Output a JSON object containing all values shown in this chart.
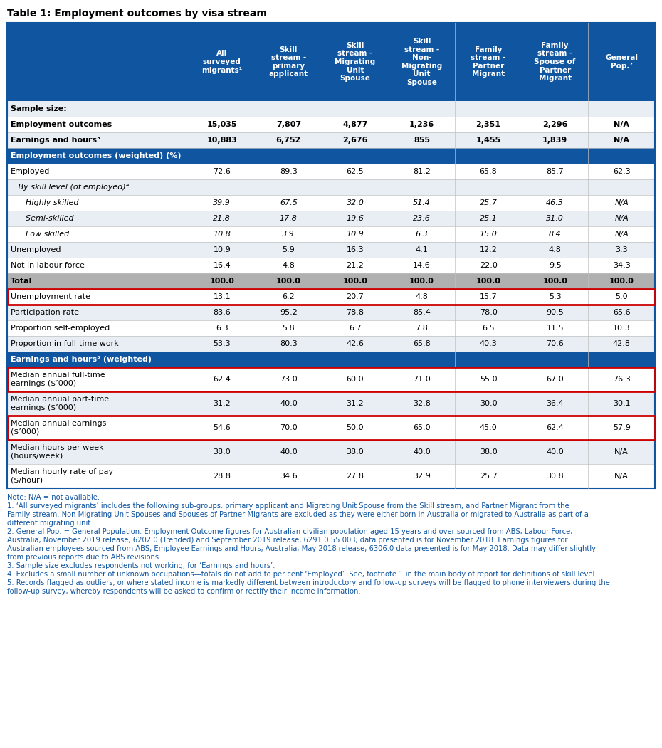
{
  "title": "Table 1: Employment outcomes by visa stream",
  "header_bg": "#1055A0",
  "header_text": "#FFFFFF",
  "section_bg": "#1055A0",
  "section_text": "#FFFFFF",
  "total_bg": "#B0B0B0",
  "alt_row_bg": "#E8EEF4",
  "white_bg": "#FFFFFF",
  "red_border_color": "#CC0000",
  "border_color": "#1055A0",
  "grid_color": "#C0C0C0",
  "notes_color": "#1055A0",
  "col_headers": [
    "All\nsurveyed\nmigrants¹",
    "Skill\nstream -\nprimary\napplicant",
    "Skill\nstream -\nMigrating\nUnit\nSpouse",
    "Skill\nstream -\nNon-\nMigrating\nUnit\nSpouse",
    "Family\nstream -\nPartner\nMigrant",
    "Family\nstream -\nSpouse of\nPartner\nMigrant",
    "General\nPop.²"
  ],
  "rows": [
    {
      "label": "Sample size:",
      "type": "sample_header",
      "indent": 0,
      "values": [
        "",
        "",
        "",
        "",
        "",
        "",
        ""
      ],
      "bold": true,
      "italic": false
    },
    {
      "label": "Employment outcomes",
      "type": "data",
      "indent": 0,
      "values": [
        "15,035",
        "7,807",
        "4,877",
        "1,236",
        "2,351",
        "2,296",
        "N/A"
      ],
      "bold": true,
      "italic": false
    },
    {
      "label": "Earnings and hours³",
      "type": "data",
      "indent": 0,
      "values": [
        "10,883",
        "6,752",
        "2,676",
        "855",
        "1,455",
        "1,839",
        "N/A"
      ],
      "bold": true,
      "italic": false
    },
    {
      "label": "Employment outcomes (weighted) (%)",
      "type": "section_header",
      "indent": 0,
      "values": [
        "",
        "",
        "",
        "",
        "",
        "",
        ""
      ],
      "bold": true,
      "italic": false
    },
    {
      "label": "Employed",
      "type": "data",
      "indent": 0,
      "values": [
        "72.6",
        "89.3",
        "62.5",
        "81.2",
        "65.8",
        "85.7",
        "62.3"
      ],
      "bold": false,
      "italic": false
    },
    {
      "label": "   By skill level (of employed)⁴:",
      "type": "data",
      "indent": 0,
      "values": [
        "",
        "",
        "",
        "",
        "",
        "",
        ""
      ],
      "bold": false,
      "italic": true
    },
    {
      "label": "      Highly skilled",
      "type": "data",
      "indent": 0,
      "values": [
        "39.9",
        "67.5",
        "32.0",
        "51.4",
        "25.7",
        "46.3",
        "N/A"
      ],
      "bold": false,
      "italic": true
    },
    {
      "label": "      Semi-skilled",
      "type": "data",
      "indent": 0,
      "values": [
        "21.8",
        "17.8",
        "19.6",
        "23.6",
        "25.1",
        "31.0",
        "N/A"
      ],
      "bold": false,
      "italic": true
    },
    {
      "label": "      Low skilled",
      "type": "data",
      "indent": 0,
      "values": [
        "10.8",
        "3.9",
        "10.9",
        "6.3",
        "15.0",
        "8.4",
        "N/A"
      ],
      "bold": false,
      "italic": true
    },
    {
      "label": "Unemployed",
      "type": "data",
      "indent": 0,
      "values": [
        "10.9",
        "5.9",
        "16.3",
        "4.1",
        "12.2",
        "4.8",
        "3.3"
      ],
      "bold": false,
      "italic": false
    },
    {
      "label": "Not in labour force",
      "type": "data",
      "indent": 0,
      "values": [
        "16.4",
        "4.8",
        "21.2",
        "14.6",
        "22.0",
        "9.5",
        "34.3"
      ],
      "bold": false,
      "italic": false
    },
    {
      "label": "Total",
      "type": "total",
      "indent": 0,
      "values": [
        "100.0",
        "100.0",
        "100.0",
        "100.0",
        "100.0",
        "100.0",
        "100.0"
      ],
      "bold": true,
      "italic": false
    },
    {
      "label": "Unemployment rate",
      "type": "red_border",
      "indent": 0,
      "values": [
        "13.1",
        "6.2",
        "20.7",
        "4.8",
        "15.7",
        "5.3",
        "5.0"
      ],
      "bold": false,
      "italic": false
    },
    {
      "label": "Participation rate",
      "type": "data",
      "indent": 0,
      "values": [
        "83.6",
        "95.2",
        "78.8",
        "85.4",
        "78.0",
        "90.5",
        "65.6"
      ],
      "bold": false,
      "italic": false
    },
    {
      "label": "Proportion self-employed",
      "type": "data",
      "indent": 0,
      "values": [
        "6.3",
        "5.8",
        "6.7",
        "7.8",
        "6.5",
        "11.5",
        "10.3"
      ],
      "bold": false,
      "italic": false
    },
    {
      "label": "Proportion in full-time work",
      "type": "data",
      "indent": 0,
      "values": [
        "53.3",
        "80.3",
        "42.6",
        "65.8",
        "40.3",
        "70.6",
        "42.8"
      ],
      "bold": false,
      "italic": false
    },
    {
      "label": "Earnings and hours⁵ (weighted)",
      "type": "section_header",
      "indent": 0,
      "values": [
        "",
        "",
        "",
        "",
        "",
        "",
        ""
      ],
      "bold": true,
      "italic": false
    },
    {
      "label": "Median annual full-time\nearnings ($’000)",
      "type": "red_border",
      "indent": 0,
      "values": [
        "62.4",
        "73.0",
        "60.0",
        "71.0",
        "55.0",
        "67.0",
        "76.3"
      ],
      "bold": false,
      "italic": false
    },
    {
      "label": "Median annual part-time\nearnings ($’000)",
      "type": "data",
      "indent": 0,
      "values": [
        "31.2",
        "40.0",
        "31.2",
        "32.8",
        "30.0",
        "36.4",
        "30.1"
      ],
      "bold": false,
      "italic": false
    },
    {
      "label": "Median annual earnings\n($’000)",
      "type": "red_border",
      "indent": 0,
      "values": [
        "54.6",
        "70.0",
        "50.0",
        "65.0",
        "45.0",
        "62.4",
        "57.9"
      ],
      "bold": false,
      "italic": false
    },
    {
      "label": "Median hours per week\n(hours/week)",
      "type": "data",
      "indent": 0,
      "values": [
        "38.0",
        "40.0",
        "38.0",
        "40.0",
        "38.0",
        "40.0",
        "N/A"
      ],
      "bold": false,
      "italic": false
    },
    {
      "label": "Median hourly rate of pay\n($/hour)",
      "type": "data",
      "indent": 0,
      "values": [
        "28.8",
        "34.6",
        "27.8",
        "32.9",
        "25.7",
        "30.8",
        "N/A"
      ],
      "bold": false,
      "italic": false
    }
  ],
  "footnotes": [
    "Note: N/A = not available.",
    "1. ‘All surveyed migrants’ includes the following sub-groups: primary applicant and Migrating Unit Spouse from the Skill stream, and Partner Migrant from the",
    "Family stream. Non Migrating Unit Spouses and Spouses of Partner Migrants are excluded as they were either born in Australia or migrated to Australia as part of a",
    "different migrating unit.",
    "2. General Pop. = General Population. Employment Outcome figures for Australian civilian population aged 15 years and over sourced from ABS, Labour Force,",
    "Australia, November 2019 release, 6202.0 (Trended) and September 2019 release, 6291.0.55.003, data presented is for November 2018. Earnings figures for",
    "Australian employees sourced from ABS, Employee Earnings and Hours, Australia, May 2018 release, 6306.0 data presented is for May 2018. Data may differ slightly",
    "from previous reports due to ABS revisions.",
    "3. Sample size excludes respondents not working, for ‘Earnings and hours’.",
    "4. Excludes a small number of unknown occupations—totals do not add to per cent ‘Employed’. See, footnote 1 in the main body of report for definitions of skill level.",
    "5. Records flagged as outliers, or where stated income is markedly different between introductory and follow-up surveys will be flagged to phone interviewers during the",
    "follow-up survey, whereby respondents will be asked to confirm or rectify their income information."
  ]
}
